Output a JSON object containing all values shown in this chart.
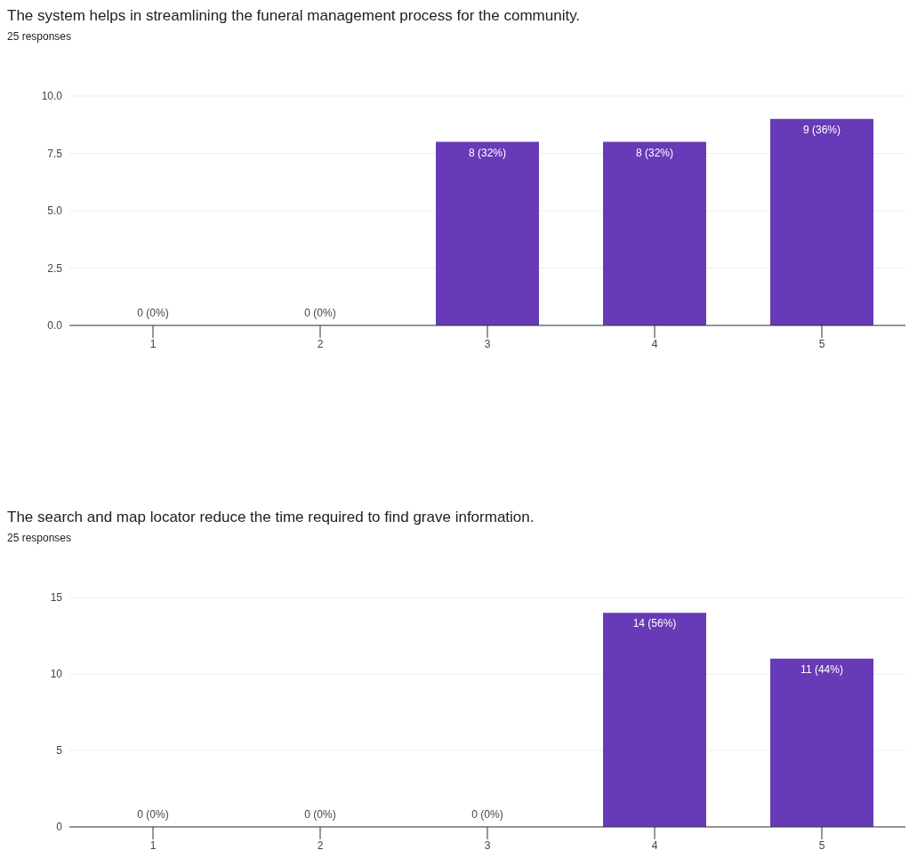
{
  "chart_data": [
    {
      "type": "bar",
      "title": "The system helps in streamlining the funeral management process for the community.",
      "subtitle": "25 responses",
      "categories": [
        "1",
        "2",
        "3",
        "4",
        "5"
      ],
      "values": [
        0,
        0,
        8,
        8,
        9
      ],
      "color": "#673ab7",
      "value_labels": [
        "0 (0%)",
        "0 (0%)",
        "8 (32%)",
        "8 (32%)",
        "9 (36%)"
      ],
      "ylim": [
        0,
        10
      ],
      "yticks": [
        {
          "value": 0,
          "label": "0.0"
        },
        2.5,
        {
          "value": 5,
          "label": "5.0"
        },
        7.5,
        {
          "value": 10,
          "label": "10.0"
        }
      ],
      "grid": "y"
    },
    {
      "type": "bar",
      "title": "The search and map locator reduce the time required to find grave information.",
      "subtitle": "25 responses",
      "categories": [
        "1",
        "2",
        "3",
        "4",
        "5"
      ],
      "values": [
        0,
        0,
        0,
        14,
        11
      ],
      "color": "#673ab7",
      "value_labels": [
        "0 (0%)",
        "0 (0%)",
        "0 (0%)",
        "14 (56%)",
        "11 (44%)"
      ],
      "ylim": [
        0,
        15
      ],
      "yticks": [
        0,
        5,
        10,
        15
      ],
      "grid": "y"
    }
  ]
}
